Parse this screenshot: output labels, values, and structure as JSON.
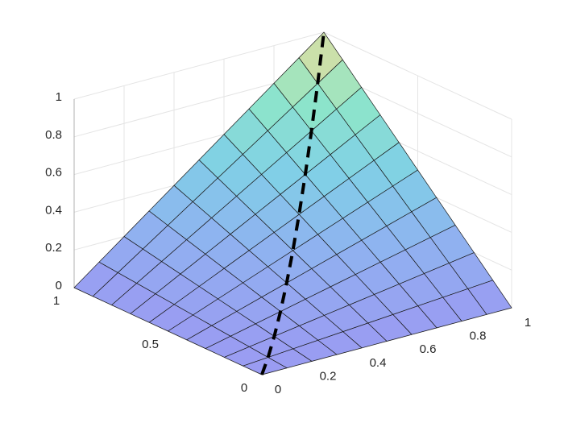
{
  "chart_data": {
    "type": "surface",
    "x": [
      0,
      0.1,
      0.2,
      0.3,
      0.4,
      0.5,
      0.6,
      0.7,
      0.8,
      0.9,
      1
    ],
    "y": [
      0,
      0.1,
      0.2,
      0.3,
      0.4,
      0.5,
      0.6,
      0.7,
      0.8,
      0.9,
      1
    ],
    "z": [
      [
        0,
        0,
        0,
        0,
        0,
        0,
        0,
        0,
        0,
        0,
        0
      ],
      [
        0,
        0.01,
        0.02,
        0.03,
        0.04,
        0.05,
        0.06,
        0.07,
        0.08,
        0.09,
        0.1
      ],
      [
        0,
        0.02,
        0.04,
        0.06,
        0.08,
        0.1,
        0.12,
        0.14,
        0.16,
        0.18,
        0.2
      ],
      [
        0,
        0.03,
        0.06,
        0.09,
        0.12,
        0.15,
        0.18,
        0.21,
        0.24,
        0.27,
        0.3
      ],
      [
        0,
        0.04,
        0.08,
        0.12,
        0.16,
        0.2,
        0.24,
        0.28,
        0.32,
        0.36,
        0.4
      ],
      [
        0,
        0.05,
        0.1,
        0.15,
        0.2,
        0.25,
        0.3,
        0.35,
        0.4,
        0.45,
        0.5
      ],
      [
        0,
        0.06,
        0.12,
        0.18,
        0.24,
        0.3,
        0.36,
        0.42,
        0.48,
        0.54,
        0.6
      ],
      [
        0,
        0.07,
        0.14,
        0.21,
        0.28,
        0.35,
        0.42,
        0.49,
        0.56,
        0.63,
        0.7
      ],
      [
        0,
        0.08,
        0.16,
        0.24,
        0.32,
        0.4,
        0.48,
        0.56,
        0.64,
        0.72,
        0.8
      ],
      [
        0,
        0.09,
        0.18,
        0.27,
        0.36,
        0.45,
        0.54,
        0.63,
        0.72,
        0.81,
        0.9
      ],
      [
        0,
        0.1,
        0.2,
        0.3,
        0.4,
        0.5,
        0.6,
        0.7,
        0.8,
        0.9,
        1
      ]
    ],
    "colormap": [
      "#9a9cf2",
      "#8fb2f0",
      "#80d0e6",
      "#8ee6c8",
      "#f2dc96"
    ],
    "line": {
      "color": "#000000",
      "x": [
        0,
        0.1,
        0.2,
        0.3,
        0.4,
        0.5,
        0.6,
        0.7,
        0.8,
        0.9,
        1
      ],
      "y": [
        0,
        0.1,
        0.2,
        0.3,
        0.4,
        0.5,
        0.6,
        0.7,
        0.8,
        0.9,
        1
      ],
      "z": [
        0,
        0.01,
        0.04,
        0.09,
        0.16,
        0.25,
        0.36,
        0.49,
        0.64,
        0.81,
        1
      ]
    },
    "xlim": [
      0,
      1
    ],
    "ylim": [
      0,
      1
    ],
    "zlim": [
      0,
      1
    ],
    "xticks": [
      0,
      0.2,
      0.4,
      0.6,
      0.8,
      1
    ],
    "yticks": [
      0,
      0.5,
      1
    ],
    "zticks": [
      0,
      0.2,
      0.4,
      0.6,
      0.8,
      1
    ],
    "grid": true
  }
}
